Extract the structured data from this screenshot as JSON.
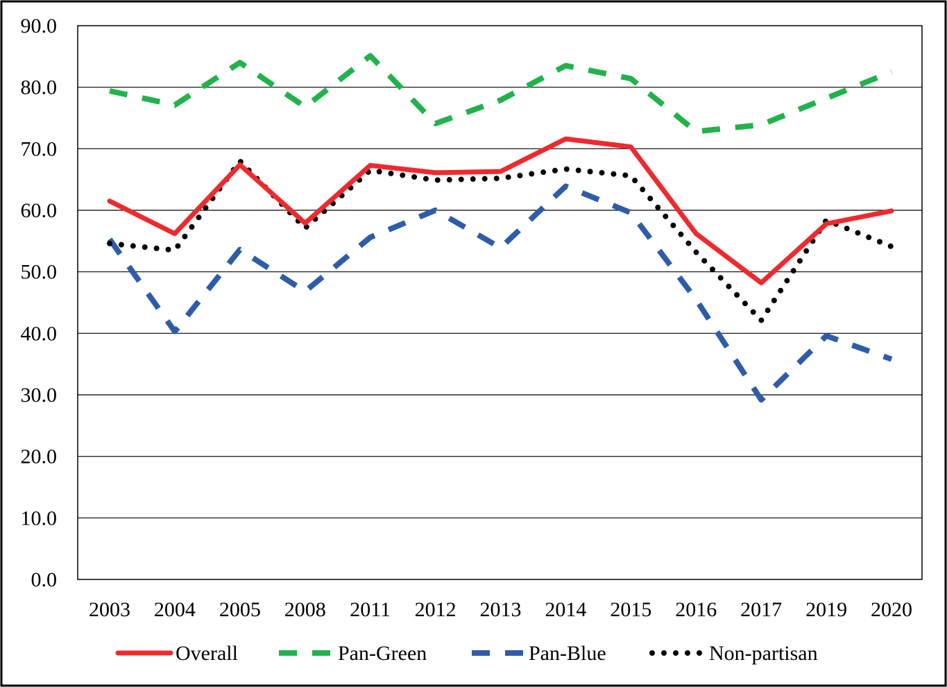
{
  "chart_data": {
    "type": "line",
    "categories": [
      "2003",
      "2004",
      "2005",
      "2008",
      "2011",
      "2012",
      "2013",
      "2014",
      "2015",
      "2016",
      "2017",
      "2019",
      "2020"
    ],
    "ylim": [
      0,
      90
    ],
    "yticks": [
      "0.0",
      "10.0",
      "20.0",
      "30.0",
      "40.0",
      "50.0",
      "60.0",
      "70.0",
      "80.0",
      "90.0"
    ],
    "grid": true,
    "legend_position": "bottom",
    "series": [
      {
        "name": "Overall",
        "color": "#ee2a2f",
        "style": "solid",
        "values": [
          61.5,
          56.2,
          67.4,
          57.9,
          67.3,
          66.1,
          66.3,
          71.6,
          70.3,
          56.2,
          48.2,
          57.8,
          59.9
        ]
      },
      {
        "name": "Pan-Green",
        "color": "#22b24c",
        "style": "dashed",
        "values": [
          79.4,
          77.1,
          84.0,
          76.8,
          85.1,
          74.1,
          77.9,
          83.5,
          81.4,
          72.8,
          73.9,
          78.2,
          82.5
        ]
      },
      {
        "name": "Pan-Blue",
        "color": "#2e5ca8",
        "style": "dashed",
        "values": [
          55.3,
          40.3,
          53.6,
          46.8,
          55.6,
          60.0,
          53.9,
          63.9,
          59.6,
          45.5,
          29.2,
          39.6,
          35.8
        ]
      },
      {
        "name": "Non-partisan",
        "color": "#000000",
        "style": "dotted",
        "values": [
          54.6,
          53.5,
          68.0,
          57.1,
          66.5,
          64.9,
          65.2,
          66.7,
          65.6,
          53.2,
          42.1,
          58.4,
          54.1
        ]
      }
    ]
  }
}
